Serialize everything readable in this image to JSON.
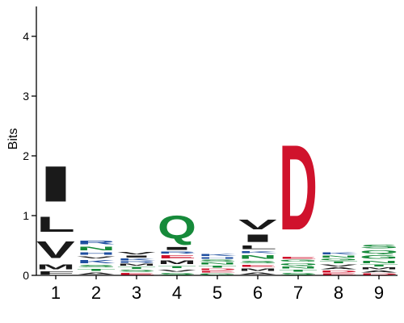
{
  "chart_data": {
    "type": "sequence-logo",
    "ylabel": "Bits",
    "ylim": [
      0,
      4.5
    ],
    "yticks": [
      0,
      1,
      2,
      3,
      4
    ],
    "positions": [
      "1",
      "2",
      "3",
      "4",
      "5",
      "6",
      "7",
      "8",
      "9"
    ],
    "colors": {
      "hydrophobic": "#1a1a1a",
      "polar": "#168a3a",
      "basic": "#1f4fa0",
      "acidic": "#d0122c",
      "neutral": "#8a3fa0"
    },
    "columns": [
      {
        "position": "1",
        "letters": [
          {
            "aa": "F",
            "bits": 0.08,
            "color": "hydrophobic"
          },
          {
            "aa": "M",
            "bits": 0.12,
            "color": "hydrophobic"
          },
          {
            "aa": "V",
            "bits": 0.45,
            "color": "hydrophobic"
          },
          {
            "aa": "L",
            "bits": 0.4,
            "color": "hydrophobic"
          },
          {
            "aa": "I",
            "bits": 0.95,
            "color": "hydrophobic"
          }
        ]
      },
      {
        "position": "2",
        "letters": [
          {
            "aa": "A",
            "bits": 0.06,
            "color": "hydrophobic"
          },
          {
            "aa": "T",
            "bits": 0.06,
            "color": "polar"
          },
          {
            "aa": "S",
            "bits": 0.07,
            "color": "polar"
          },
          {
            "aa": "K",
            "bits": 0.08,
            "color": "basic"
          },
          {
            "aa": "V",
            "bits": 0.06,
            "color": "hydrophobic"
          },
          {
            "aa": "H",
            "bits": 0.07,
            "color": "basic"
          },
          {
            "aa": "N",
            "bits": 0.1,
            "color": "polar"
          },
          {
            "aa": "R",
            "bits": 0.09,
            "color": "basic"
          }
        ]
      },
      {
        "position": "3",
        "letters": [
          {
            "aa": "E",
            "bits": 0.05,
            "color": "acidic"
          },
          {
            "aa": "S",
            "bits": 0.05,
            "color": "polar"
          },
          {
            "aa": "T",
            "bits": 0.05,
            "color": "polar"
          },
          {
            "aa": "M",
            "bits": 0.05,
            "color": "hydrophobic"
          },
          {
            "aa": "R",
            "bits": 0.04,
            "color": "basic"
          },
          {
            "aa": "K",
            "bits": 0.05,
            "color": "basic"
          },
          {
            "aa": "I",
            "bits": 0.05,
            "color": "hydrophobic"
          },
          {
            "aa": "V",
            "bits": 0.07,
            "color": "hydrophobic"
          }
        ]
      },
      {
        "position": "4",
        "letters": [
          {
            "aa": "S",
            "bits": 0.05,
            "color": "polar"
          },
          {
            "aa": "V",
            "bits": 0.06,
            "color": "hydrophobic"
          },
          {
            "aa": "T",
            "bits": 0.06,
            "color": "polar"
          },
          {
            "aa": "M",
            "bits": 0.1,
            "color": "hydrophobic"
          },
          {
            "aa": "E",
            "bits": 0.08,
            "color": "acidic"
          },
          {
            "aa": "R",
            "bits": 0.06,
            "color": "basic"
          },
          {
            "aa": "I",
            "bits": 0.08,
            "color": "hydrophobic"
          },
          {
            "aa": "Q",
            "bits": 0.62,
            "color": "polar"
          }
        ]
      },
      {
        "position": "5",
        "letters": [
          {
            "aa": "G",
            "bits": 0.04,
            "color": "polar"
          },
          {
            "aa": "E",
            "bits": 0.04,
            "color": "acidic"
          },
          {
            "aa": "D",
            "bits": 0.04,
            "color": "acidic"
          },
          {
            "aa": "T",
            "bits": 0.05,
            "color": "polar"
          },
          {
            "aa": "N",
            "bits": 0.05,
            "color": "polar"
          },
          {
            "aa": "S",
            "bits": 0.05,
            "color": "polar"
          },
          {
            "aa": "H",
            "bits": 0.04,
            "color": "basic"
          },
          {
            "aa": "K",
            "bits": 0.06,
            "color": "basic"
          }
        ]
      },
      {
        "position": "6",
        "letters": [
          {
            "aa": "A",
            "bits": 0.06,
            "color": "hydrophobic"
          },
          {
            "aa": "M",
            "bits": 0.07,
            "color": "hydrophobic"
          },
          {
            "aa": "E",
            "bits": 0.06,
            "color": "acidic"
          },
          {
            "aa": "S",
            "bits": 0.07,
            "color": "polar"
          },
          {
            "aa": "N",
            "bits": 0.1,
            "color": "polar"
          },
          {
            "aa": "K",
            "bits": 0.06,
            "color": "basic"
          },
          {
            "aa": "L",
            "bits": 0.1,
            "color": "hydrophobic"
          },
          {
            "aa": "I",
            "bits": 0.2,
            "color": "hydrophobic"
          },
          {
            "aa": "V",
            "bits": 0.27,
            "color": "hydrophobic"
          }
        ]
      },
      {
        "position": "7",
        "letters": [
          {
            "aa": "S",
            "bits": 0.05,
            "color": "polar"
          },
          {
            "aa": "T",
            "bits": 0.05,
            "color": "polar"
          },
          {
            "aa": "N",
            "bits": 0.06,
            "color": "polar"
          },
          {
            "aa": "Q",
            "bits": 0.06,
            "color": "polar"
          },
          {
            "aa": "G",
            "bits": 0.05,
            "color": "polar"
          },
          {
            "aa": "E",
            "bits": 0.05,
            "color": "acidic"
          },
          {
            "aa": "D",
            "bits": 2.28,
            "color": "acidic"
          }
        ]
      },
      {
        "position": "8",
        "letters": [
          {
            "aa": "E",
            "bits": 0.04,
            "color": "acidic"
          },
          {
            "aa": "D",
            "bits": 0.05,
            "color": "acidic"
          },
          {
            "aa": "A",
            "bits": 0.05,
            "color": "hydrophobic"
          },
          {
            "aa": "V",
            "bits": 0.05,
            "color": "hydrophobic"
          },
          {
            "aa": "T",
            "bits": 0.05,
            "color": "polar"
          },
          {
            "aa": "G",
            "bits": 0.05,
            "color": "polar"
          },
          {
            "aa": "N",
            "bits": 0.05,
            "color": "polar"
          },
          {
            "aa": "K",
            "bits": 0.06,
            "color": "basic"
          }
        ]
      },
      {
        "position": "9",
        "letters": [
          {
            "aa": "D",
            "bits": 0.04,
            "color": "acidic"
          },
          {
            "aa": "A",
            "bits": 0.05,
            "color": "hydrophobic"
          },
          {
            "aa": "M",
            "bits": 0.05,
            "color": "hydrophobic"
          },
          {
            "aa": "T",
            "bits": 0.05,
            "color": "polar"
          },
          {
            "aa": "N",
            "bits": 0.07,
            "color": "polar"
          },
          {
            "aa": "G",
            "bits": 0.09,
            "color": "polar"
          },
          {
            "aa": "Q",
            "bits": 0.08,
            "color": "polar"
          },
          {
            "aa": "S",
            "bits": 0.1,
            "color": "polar"
          }
        ]
      }
    ]
  }
}
